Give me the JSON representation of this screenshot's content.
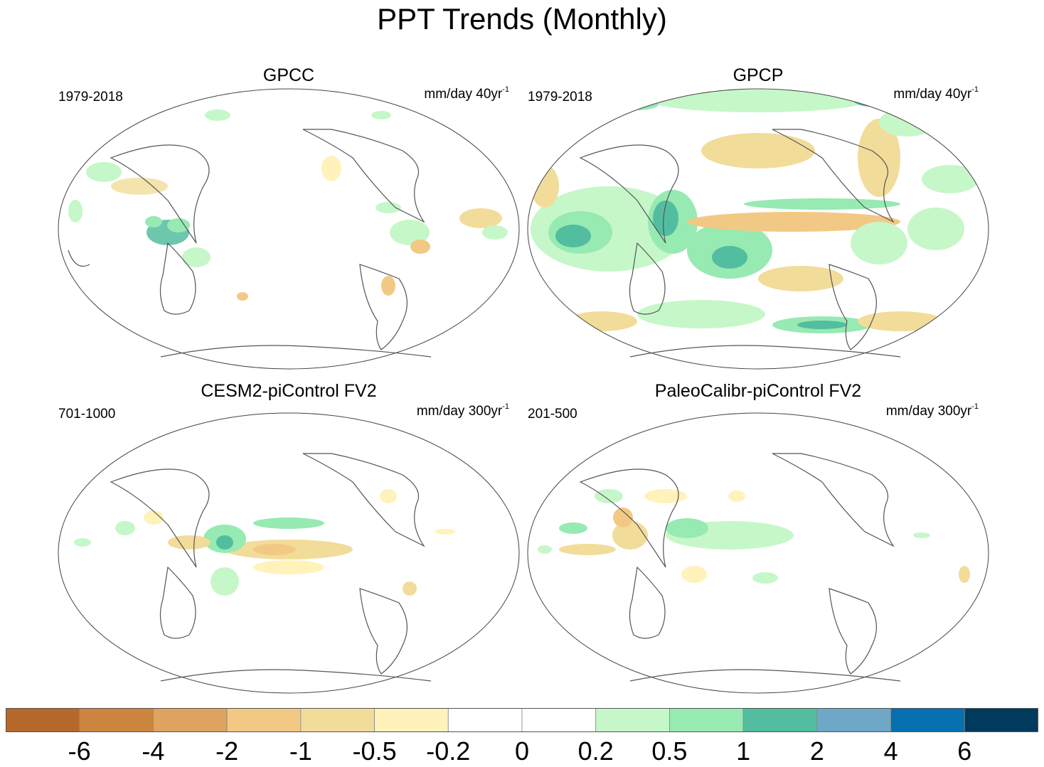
{
  "chart_data": [
    {
      "type": "heatmap",
      "title": "PPT Trends (Monthly)",
      "panel_title": "GPCC",
      "period": "1979-2018",
      "units": "mm/day 40yr",
      "units_exp": "-1",
      "colormap": [
        "#b5682a",
        "#cc853f",
        "#dea35f",
        "#f2c984",
        "#f2dc9a",
        "#fff2bb",
        "#ffffff",
        "#ffffff",
        "#c6f7c9",
        "#96eab2",
        "#53bd9f",
        "#6ea8c6",
        "#0770b0",
        "#003a5c"
      ],
      "levels": [
        "-6",
        "-4",
        "-2",
        "-1",
        "-0.5",
        "-0.2",
        "0",
        "0.2",
        "0.5",
        "1",
        "2",
        "4",
        "6"
      ]
    },
    {
      "type": "heatmap",
      "panel_title": "GPCP",
      "period": "1979-2018",
      "units": "mm/day 40yr",
      "units_exp": "-1"
    },
    {
      "type": "heatmap",
      "panel_title": "CESM2-piControl FV2",
      "period": "701-1000",
      "units": "mm/day 300yr",
      "units_exp": "-1"
    },
    {
      "type": "heatmap",
      "panel_title": "PaleoCalibr-piControl FV2",
      "period": "201-500",
      "units": "mm/day 300yr",
      "units_exp": "-1"
    }
  ],
  "colorbar": {
    "colors": [
      "#b5682a",
      "#cc853f",
      "#dea35f",
      "#f2c984",
      "#f2dc9a",
      "#fff2bb",
      "#ffffff",
      "#ffffff",
      "#c6f7c9",
      "#96eab2",
      "#53bd9f",
      "#6ea8c6",
      "#0770b0",
      "#003a5c"
    ],
    "labels": [
      "-6",
      "-4",
      "-2",
      "-1",
      "-0.5",
      "-0.2",
      "0",
      "0.2",
      "0.5",
      "1",
      "2",
      "4",
      "6"
    ]
  }
}
